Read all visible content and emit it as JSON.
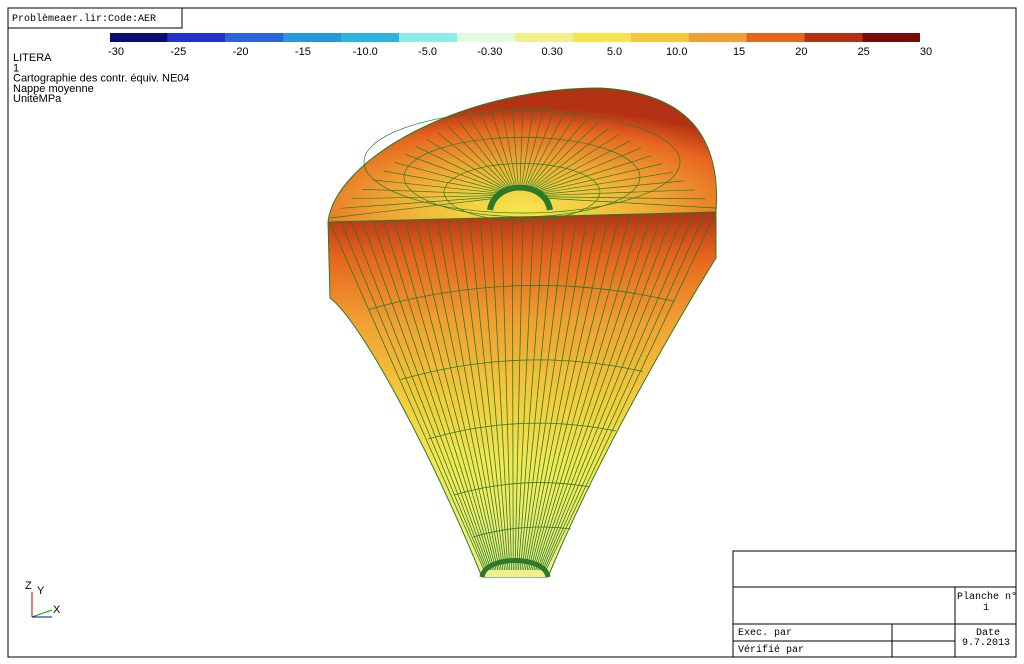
{
  "header": {
    "file": "Problèmeaer.lir:Code:AER"
  },
  "legend": {
    "labels": [
      "-30",
      "-25",
      "-20",
      "-15",
      "-10.0",
      "-5.0",
      "-0.30",
      "0.30",
      "5.0",
      "10.0",
      "15",
      "20",
      "25",
      "30"
    ],
    "colors": [
      "#0a0a78",
      "#2332c8",
      "#2a64dc",
      "#2896dc",
      "#2cb4dc",
      "#8cecec",
      "#e6fadc",
      "#f0f08c",
      "#f5e650",
      "#f5c83c",
      "#f0a032",
      "#e6641e",
      "#b43214",
      "#780a0a"
    ]
  },
  "info": [
    "LITERA",
    "1",
    "Cartographie des contr. équiv. NE04",
    "Nappe moyenne",
    "UnitéMPa"
  ],
  "axes": {
    "z": "Z",
    "y": "Y",
    "x": "X"
  },
  "title_block": {
    "sheet_label": "Planche n°",
    "sheet_number": "1",
    "executed_by": "Exec. par",
    "checked_by": "Vérifié par",
    "date_label": "Date",
    "date": "9.7.2013"
  }
}
